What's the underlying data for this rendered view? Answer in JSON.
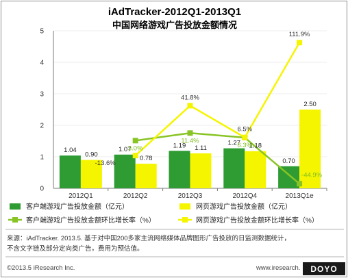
{
  "title": "iAdTracker-2012Q1-2013Q1",
  "subtitle": "中国网络游戏广告投放金额情况",
  "chart_data": {
    "type": "bar",
    "categories": [
      "2012Q1",
      "2012Q2",
      "2012Q3",
      "2012Q4",
      "2013Q1e"
    ],
    "ylim": [
      0,
      5
    ],
    "yticks": [
      "0",
      "1",
      "2",
      "3",
      "4",
      "5"
    ],
    "secondary_ylim": [
      -0.5,
      1.25
    ],
    "series": [
      {
        "name": "客户端游戏广告投放金额（亿元）",
        "type": "bar",
        "color": "#2e9c32",
        "values": [
          1.04,
          1.07,
          1.19,
          1.27,
          0.7
        ],
        "labels": [
          "1.04",
          "1.07",
          "1.19",
          "1.27",
          "0.70"
        ]
      },
      {
        "name": "网页游戏广告投放金额（亿元）",
        "type": "bar",
        "color": "#f5f500",
        "values": [
          0.9,
          0.78,
          1.11,
          1.18,
          2.5
        ],
        "labels": [
          "0.90",
          "0.78",
          "1.11",
          "1.18",
          "2.50"
        ]
      },
      {
        "name": "客户端游戏广告投放金额环比增长率（%）",
        "type": "line",
        "color": "#89c425",
        "values": [
          null,
          0.03,
          0.114,
          0.063,
          -0.449
        ],
        "labels": [
          "",
          "3.0%",
          "11.4%",
          "6.3%",
          "-44.9%"
        ]
      },
      {
        "name": "网页游戏广告投放金额环比增长率（%）",
        "type": "line",
        "color": "#f5f500",
        "values": [
          null,
          -0.136,
          0.418,
          0.065,
          1.119
        ],
        "labels": [
          "",
          "-13.6%",
          "41.8%",
          "6.5%",
          "111.9%"
        ]
      }
    ]
  },
  "legend": [
    {
      "label": "客户端游戏广告投放金额（亿元）",
      "color": "#2e9c32",
      "kind": "bar"
    },
    {
      "label": "网页游戏广告投放金额（亿元）",
      "color": "#f5f500",
      "kind": "bar"
    },
    {
      "label": "客户端游戏广告投放金额环比增长率（%）",
      "color": "#89c425",
      "kind": "line"
    },
    {
      "label": "网页游戏广告投放金额环比增长率（%）",
      "color": "#f5f500",
      "kind": "line"
    }
  ],
  "source_line1": "来源：iAdTracker. 2013.5. 基于对中国200多家主流网络媒体品牌图形广告投放的日监测数据统计，",
  "source_line2": "不含文字链及部分定向类广告，费用为预估值。",
  "copyright": "©2013.5 iResearch Inc.",
  "website": "www.iresearch.",
  "logo": "DOYO"
}
